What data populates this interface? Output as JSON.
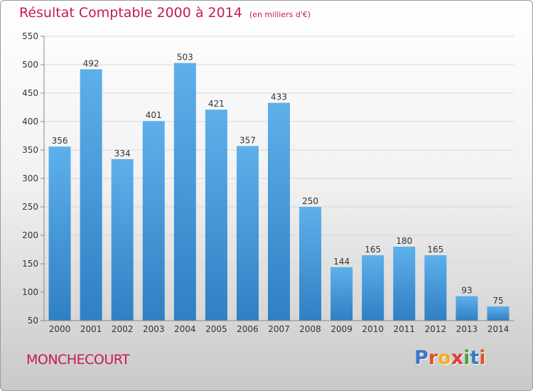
{
  "chart_data": {
    "type": "bar",
    "title": "Résultat Comptable 2000 à 2014",
    "subtitle": "(en milliers d'€)",
    "categories": [
      "2000",
      "2001",
      "2002",
      "2003",
      "2004",
      "2005",
      "2006",
      "2007",
      "2008",
      "2009",
      "2010",
      "2011",
      "2012",
      "2013",
      "2014"
    ],
    "values": [
      356,
      492,
      334,
      401,
      503,
      421,
      357,
      433,
      250,
      144,
      165,
      180,
      165,
      93,
      75
    ],
    "ylim": [
      50,
      550
    ],
    "yticks": [
      50,
      100,
      150,
      200,
      250,
      300,
      350,
      400,
      450,
      500,
      550
    ],
    "grid": true,
    "data_labels": true,
    "colors": {
      "bar_top": "#5eb0ea",
      "bar_bottom": "#2f7fc4",
      "title": "#c8185c"
    }
  },
  "footer": {
    "commune": "MONCHECOURT",
    "logo_text": "Proxiti"
  }
}
